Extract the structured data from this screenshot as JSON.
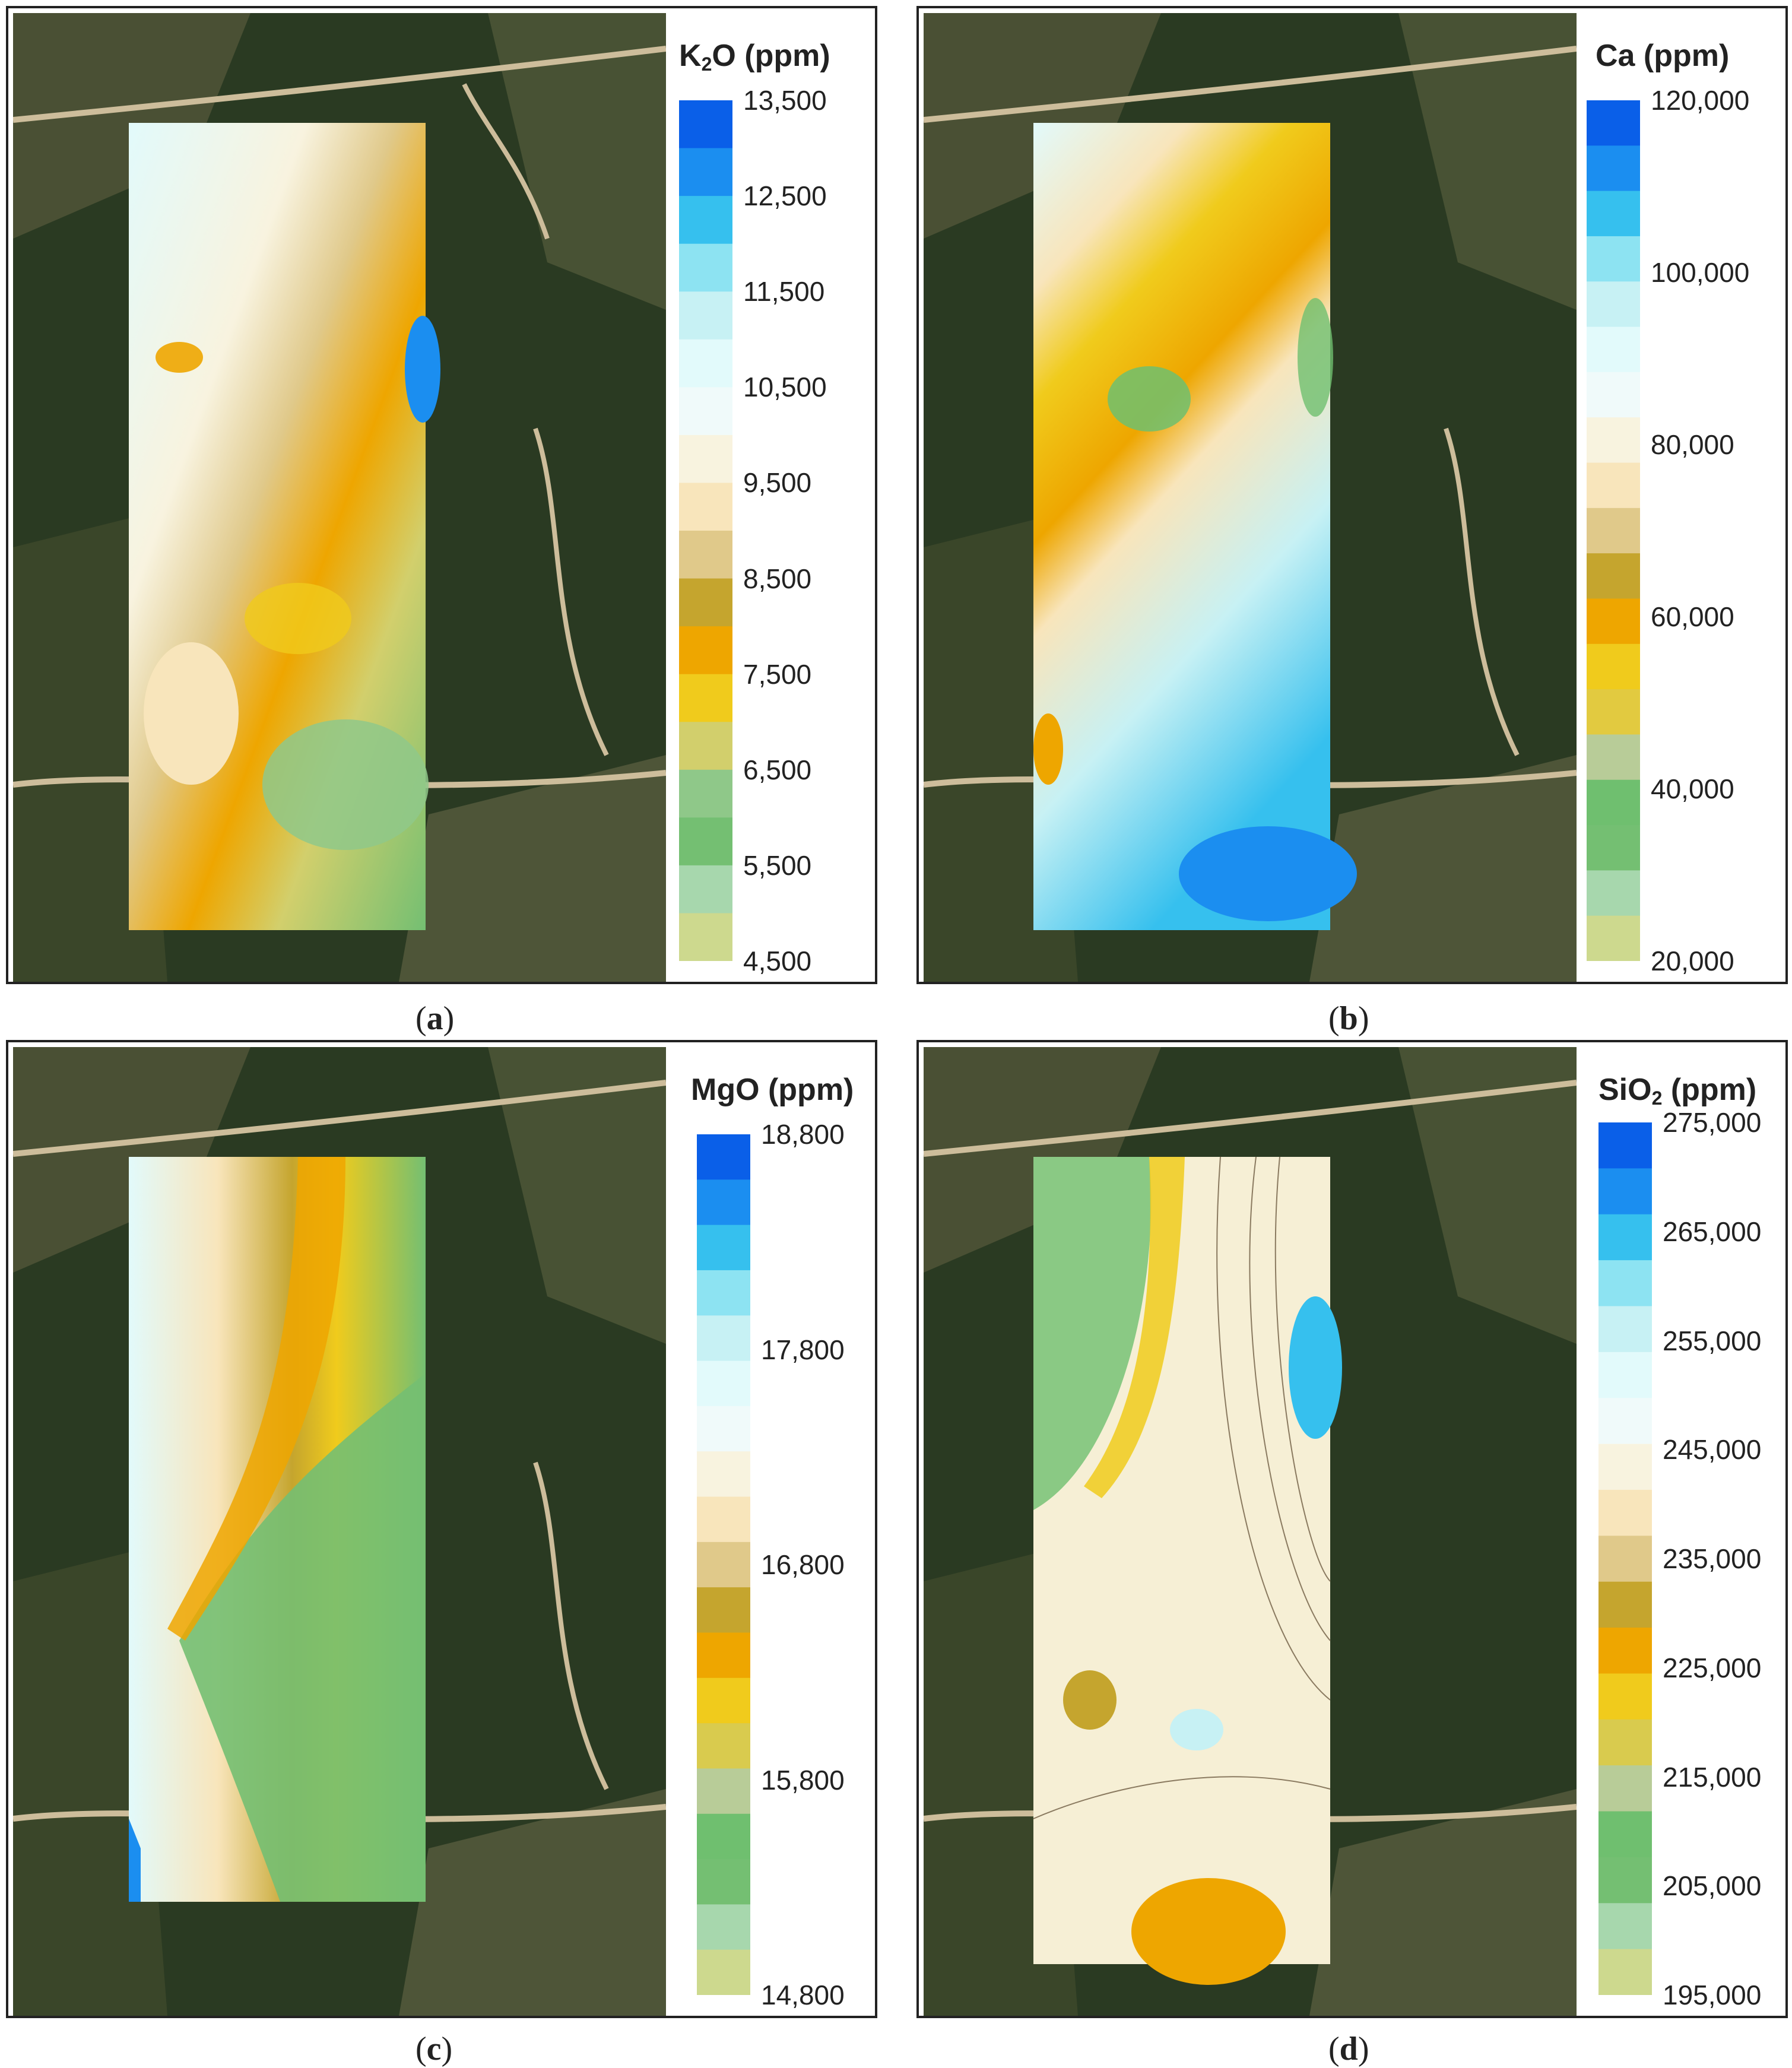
{
  "figure": {
    "panels": [
      {
        "id": "a",
        "caption_letter": "a",
        "legend_title_main": "K",
        "legend_title_sub": "2",
        "legend_title_rest": "O (ppm)",
        "ticks": [
          "13,500",
          "12,500",
          "11,500",
          "10,500",
          "9,500",
          "8,500",
          "7,500",
          "6,500",
          "5,500",
          "4,500"
        ],
        "bands": [
          "#0a5fe8",
          "#1b8ef0",
          "#36c0ee",
          "#8de3f2",
          "#c7f1f4",
          "#e2fafb",
          "#f0fafa",
          "#f8f3df",
          "#f8e5bb",
          "#e0c98a",
          "#c5a52e",
          "#eea600",
          "#f0cb1c",
          "#d2cf6c",
          "#8fc889",
          "#74bf72",
          "#a7d7ad",
          "#cdd98e"
        ]
      },
      {
        "id": "b",
        "caption_letter": "b",
        "legend_title_main": "Ca (ppm)",
        "legend_title_sub": "",
        "legend_title_rest": "",
        "ticks": [
          "120,000",
          "100,000",
          "80,000",
          "60,000",
          "40,000",
          "20,000"
        ],
        "bands": [
          "#0a5fe8",
          "#1b8ef0",
          "#36c0ee",
          "#8de3f2",
          "#c7f1f4",
          "#e2fafb",
          "#f0fafa",
          "#f8f3df",
          "#f8e5bb",
          "#e0c98a",
          "#c5a52e",
          "#eea600",
          "#f0cb1c",
          "#e2ca40",
          "#b8cc98",
          "#6fbf6f",
          "#74bf72",
          "#a7d7ad",
          "#cdd98e"
        ]
      },
      {
        "id": "c",
        "caption_letter": "c",
        "legend_title_main": "MgO (ppm)",
        "legend_title_sub": "",
        "legend_title_rest": "",
        "ticks": [
          "18,800",
          "17,800",
          "16,800",
          "15,800",
          "14,800"
        ],
        "bands": [
          "#0a5fe8",
          "#1b8ef0",
          "#36c0ee",
          "#8de3f2",
          "#c7f1f4",
          "#e2fafb",
          "#f0fafa",
          "#f8f3df",
          "#f8e5bb",
          "#e0c98a",
          "#c5a52e",
          "#eea600",
          "#f0cb1c",
          "#d9cb4e",
          "#b8cc98",
          "#6fbf6f",
          "#74bf72",
          "#a7d7ad",
          "#cdd98e"
        ]
      },
      {
        "id": "d",
        "caption_letter": "d",
        "legend_title_main": "SiO",
        "legend_title_sub": "2",
        "legend_title_rest": " (ppm)",
        "ticks": [
          "275,000",
          "265,000",
          "255,000",
          "245,000",
          "235,000",
          "225,000",
          "215,000",
          "205,000",
          "195,000"
        ],
        "bands": [
          "#0a5fe8",
          "#1b8ef0",
          "#36c0ee",
          "#8de3f2",
          "#c7f1f4",
          "#e2fafb",
          "#f0fafa",
          "#f8f3df",
          "#f8e5bb",
          "#e0c98a",
          "#c5a52e",
          "#eea600",
          "#f0cb1c",
          "#d9cb4e",
          "#b8cc98",
          "#6fbf6f",
          "#74bf72",
          "#a7d7ad",
          "#cdd98e"
        ]
      }
    ],
    "caption_open": "(",
    "caption_close": ")",
    "colors": {
      "forest_dark": "#23331d",
      "forest_mid": "#35472a",
      "field": "#5a6040",
      "road": "#cdbd9b"
    }
  }
}
